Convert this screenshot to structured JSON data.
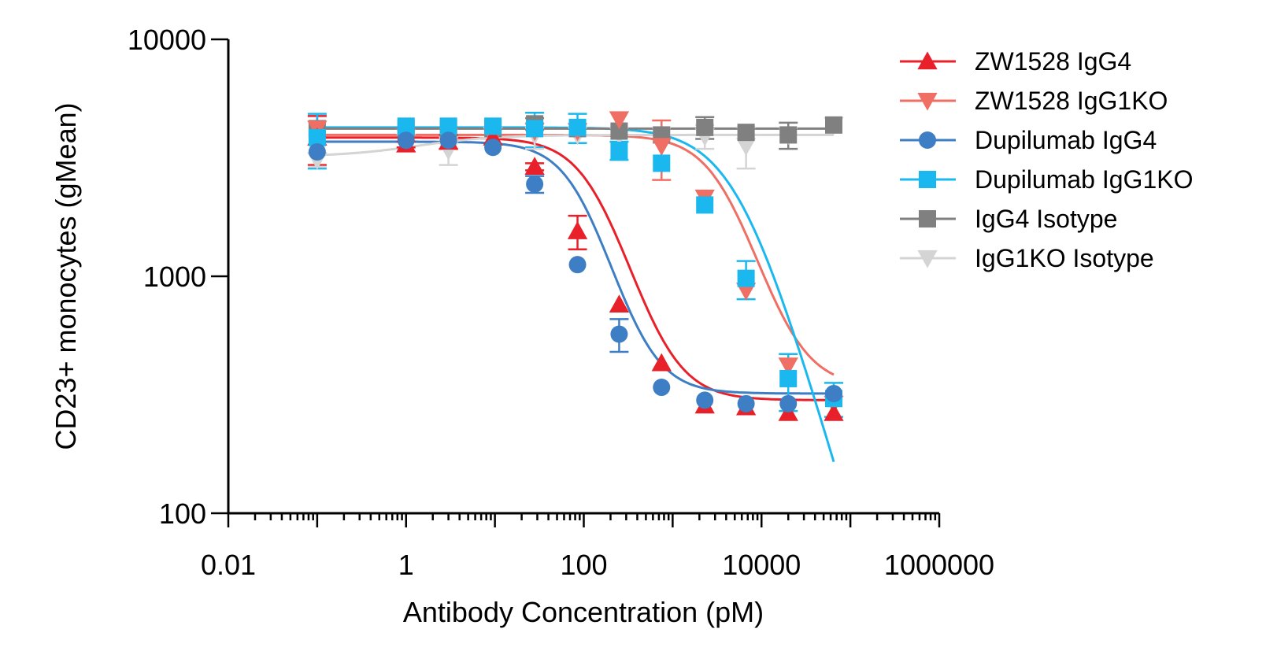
{
  "chart_data": {
    "type": "scatter",
    "title": "",
    "xlabel": "Antibody Concentration (pM)",
    "ylabel": "CD23+ monocytes (gMean)",
    "x_scale": "log",
    "y_scale": "log",
    "xlim": [
      0.01,
      1000000
    ],
    "ylim": [
      100,
      10000
    ],
    "x_ticks": [
      "0.01",
      "1",
      "100",
      "10000",
      "1000000"
    ],
    "y_ticks": [
      "100",
      "1000",
      "10000"
    ],
    "grid": false,
    "legend_position": "top-right",
    "series": [
      {
        "name": "ZW1528 IgG4",
        "color": "#e8202a",
        "marker": "triangle-up",
        "x": [
          0.1,
          1,
          3,
          9.5,
          28,
          85,
          250,
          750,
          2300,
          6700,
          20000,
          65000
        ],
        "y": [
          3850,
          3600,
          3700,
          3850,
          2900,
          1550,
          760,
          430,
          285,
          280,
          265,
          265
        ],
        "err": [
          900,
          100,
          250,
          0,
          100,
          250,
          0,
          0,
          0,
          0,
          0,
          0
        ],
        "fit": {
          "bottom": 300,
          "top": 3850,
          "ec50": 150,
          "hill": 1.6
        }
      },
      {
        "name": "ZW1528 IgG1KO",
        "color": "#ef6f64",
        "marker": "triangle-down",
        "x": [
          0.1,
          1,
          3,
          9.5,
          28,
          85,
          250,
          750,
          2300,
          6700,
          20000,
          65000
        ],
        "y": [
          4200,
          3900,
          3900,
          3900,
          4100,
          4100,
          4600,
          3550,
          2150,
          870,
          420,
          290
        ],
        "err": [
          0,
          0,
          0,
          0,
          0,
          0,
          0,
          1000,
          0,
          0,
          0,
          0
        ],
        "fit": {
          "bottom": 340,
          "top": 3950,
          "ec50": 4200,
          "hill": 1.6
        }
      },
      {
        "name": "Dupilumab IgG4",
        "color": "#3d7ec4",
        "marker": "circle",
        "x": [
          0.1,
          1,
          3,
          9.5,
          28,
          85,
          250,
          750,
          2300,
          6700,
          20000,
          65000
        ],
        "y": [
          3350,
          3750,
          3750,
          3500,
          2450,
          1120,
          570,
          340,
          300,
          290,
          290,
          320
        ],
        "err": [
          0,
          0,
          0,
          0,
          200,
          0,
          90,
          0,
          0,
          0,
          0,
          0
        ],
        "fit": {
          "bottom": 320,
          "top": 3700,
          "ec50": 100,
          "hill": 1.7
        }
      },
      {
        "name": "Dupilumab IgG1KO",
        "color": "#1ab8ee",
        "marker": "square",
        "x": [
          0.1,
          1,
          3,
          9.5,
          28,
          85,
          250,
          750,
          2300,
          6700,
          20000,
          65000
        ],
        "y": [
          3850,
          4300,
          4300,
          4300,
          4200,
          4250,
          3400,
          3000,
          2000,
          980,
          370,
          305
        ],
        "err": [
          1000,
          0,
          0,
          0,
          700,
          600,
          300,
          0,
          0,
          180,
          100,
          50
        ],
        "fit": {
          "bottom": 0,
          "top": 4250,
          "ec50": 5500,
          "hill": 1.3
        }
      },
      {
        "name": "IgG4 Isotype",
        "color": "#808080",
        "marker": "square",
        "x": [
          0.1,
          1,
          3,
          9.5,
          28,
          85,
          250,
          750,
          2300,
          6700,
          20000,
          65000
        ],
        "y": [
          4200,
          4200,
          4200,
          4200,
          4400,
          4200,
          4100,
          3950,
          4250,
          4050,
          3950,
          4350
        ],
        "err": [
          0,
          0,
          0,
          0,
          250,
          0,
          0,
          0,
          450,
          0,
          500,
          0
        ],
        "fit": {
          "bottom": 4200,
          "top": 4200,
          "ec50": 100,
          "hill": 1
        }
      },
      {
        "name": "IgG1KO Isotype",
        "color": "#d4d4d4",
        "marker": "triangle-down",
        "x": [
          0.1,
          1,
          3,
          9.5,
          28,
          85,
          250,
          750,
          2300,
          6700,
          20000,
          65000
        ],
        "y": [
          3100,
          3700,
          3400,
          3950,
          3950,
          3950,
          3950,
          3950,
          3900,
          3550,
          3950,
          4350
        ],
        "err": [
          200,
          0,
          450,
          0,
          500,
          0,
          0,
          0,
          450,
          700,
          0,
          0
        ],
        "fit": {
          "bottom": 3950,
          "top": 3200,
          "ec50": 1.5,
          "hill": 1
        }
      }
    ]
  }
}
